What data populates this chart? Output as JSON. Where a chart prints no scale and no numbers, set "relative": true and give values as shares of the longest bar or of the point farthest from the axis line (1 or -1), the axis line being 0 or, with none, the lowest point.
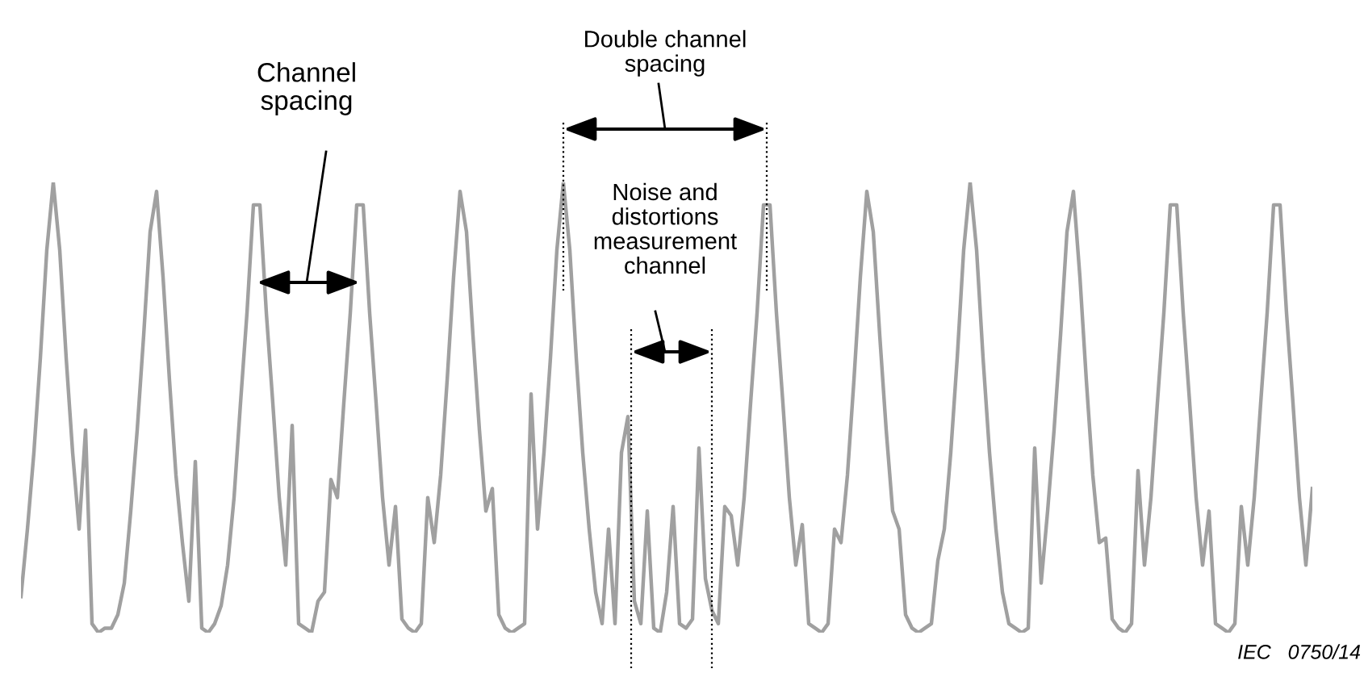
{
  "chart_data": {
    "type": "line",
    "relative": true,
    "categories": [
      null,
      null,
      null,
      null,
      null,
      null,
      null,
      null,
      null,
      null,
      null,
      null,
      null,
      null,
      null,
      null,
      null,
      null,
      null,
      null,
      null,
      null,
      null,
      null,
      null,
      null,
      null,
      null,
      null,
      null,
      null,
      null,
      null,
      null,
      null,
      null,
      null,
      null,
      null,
      null,
      null,
      null,
      null,
      null,
      null,
      null,
      null,
      null,
      null,
      null,
      null,
      null,
      null,
      null,
      null,
      null,
      null,
      null,
      null,
      null,
      null,
      null,
      null,
      null,
      null,
      null,
      null,
      null,
      null,
      null,
      null,
      null,
      null,
      null,
      null,
      null,
      null,
      null,
      null,
      null,
      null,
      null,
      null,
      null,
      null,
      null,
      null,
      null,
      null,
      null,
      null,
      null,
      null,
      null,
      null,
      null,
      null,
      null,
      null,
      null,
      null,
      null,
      null,
      null,
      null,
      null,
      null,
      null,
      null,
      null,
      null,
      null,
      null,
      null,
      null,
      null,
      null,
      null,
      null,
      null,
      null,
      null,
      null,
      null,
      null,
      null,
      null,
      null,
      null,
      null,
      null,
      null,
      null,
      null,
      null,
      null,
      null,
      null,
      null,
      null,
      null,
      null,
      null,
      null,
      null,
      null,
      null,
      null,
      null,
      null,
      null,
      null,
      null,
      null,
      null,
      null,
      null,
      null,
      null,
      null,
      null,
      null,
      null,
      null,
      null,
      null,
      null,
      null,
      null,
      null,
      null,
      null,
      null,
      null,
      null,
      null,
      null,
      null,
      null,
      null,
      null,
      null,
      null,
      null,
      null,
      null,
      null,
      null,
      null,
      null,
      null,
      null,
      null,
      null,
      null,
      null,
      null,
      null,
      null,
      null,
      null
    ],
    "series": [
      {
        "color": "#a0a0a0",
        "values": [
          0.08,
          0.23,
          0.4,
          0.61,
          0.85,
          1.0,
          0.85,
          0.61,
          0.4,
          0.23,
          0.45,
          0.02,
          0,
          0.01,
          0.01,
          0.04,
          0.11,
          0.27,
          0.45,
          0.66,
          0.89,
          0.98,
          0.79,
          0.56,
          0.35,
          0.2,
          0.07,
          0.38,
          0.01,
          0,
          0.02,
          0.06,
          0.15,
          0.3,
          0.51,
          0.71,
          0.95,
          0.95,
          0.71,
          0.51,
          0.3,
          0.15,
          0.46,
          0.02,
          0.01,
          0,
          0.07,
          0.09,
          0.34,
          0.3,
          0.51,
          0.71,
          0.95,
          0.95,
          0.71,
          0.51,
          0.3,
          0.15,
          0.28,
          0.03,
          0.01,
          0,
          0.02,
          0.3,
          0.2,
          0.35,
          0.56,
          0.79,
          0.98,
          0.89,
          0.66,
          0.45,
          0.27,
          0.32,
          0.04,
          0.01,
          0,
          0.01,
          0.02,
          0.53,
          0.23,
          0.4,
          0.61,
          0.85,
          1.0,
          0.85,
          0.61,
          0.4,
          0.23,
          0.09,
          0.02,
          0.23,
          0.02,
          0.4,
          0.48,
          0.07,
          0.02,
          0.27,
          0.01,
          0,
          0.09,
          0.28,
          0.02,
          0.01,
          0.03,
          0.41,
          0.12,
          0.05,
          0.02,
          0.28,
          0.26,
          0.15,
          0.3,
          0.51,
          0.71,
          0.95,
          0.95,
          0.71,
          0.51,
          0.3,
          0.15,
          0.24,
          0.02,
          0.01,
          0,
          0.02,
          0.23,
          0.2,
          0.35,
          0.56,
          0.79,
          0.98,
          0.89,
          0.66,
          0.45,
          0.27,
          0.23,
          0.04,
          0.01,
          0,
          0.01,
          0.02,
          0.16,
          0.23,
          0.4,
          0.61,
          0.85,
          1.0,
          0.85,
          0.61,
          0.4,
          0.23,
          0.09,
          0.02,
          0.01,
          0,
          0.01,
          0.41,
          0.11,
          0.27,
          0.45,
          0.66,
          0.89,
          0.98,
          0.79,
          0.56,
          0.35,
          0.2,
          0.21,
          0.03,
          0.01,
          0,
          0.02,
          0.36,
          0.15,
          0.3,
          0.51,
          0.71,
          0.95,
          0.95,
          0.71,
          0.51,
          0.3,
          0.15,
          0.27,
          0.02,
          0.01,
          0,
          0.02,
          0.28,
          0.15,
          0.3,
          0.51,
          0.71,
          0.95,
          0.95,
          0.71,
          0.51,
          0.3,
          0.15,
          0.32
        ]
      }
    ],
    "annotations": [
      "Channel spacing",
      "Double channel spacing",
      "Noise and distortions measurement channel",
      "IEC   0750/14"
    ]
  }
}
